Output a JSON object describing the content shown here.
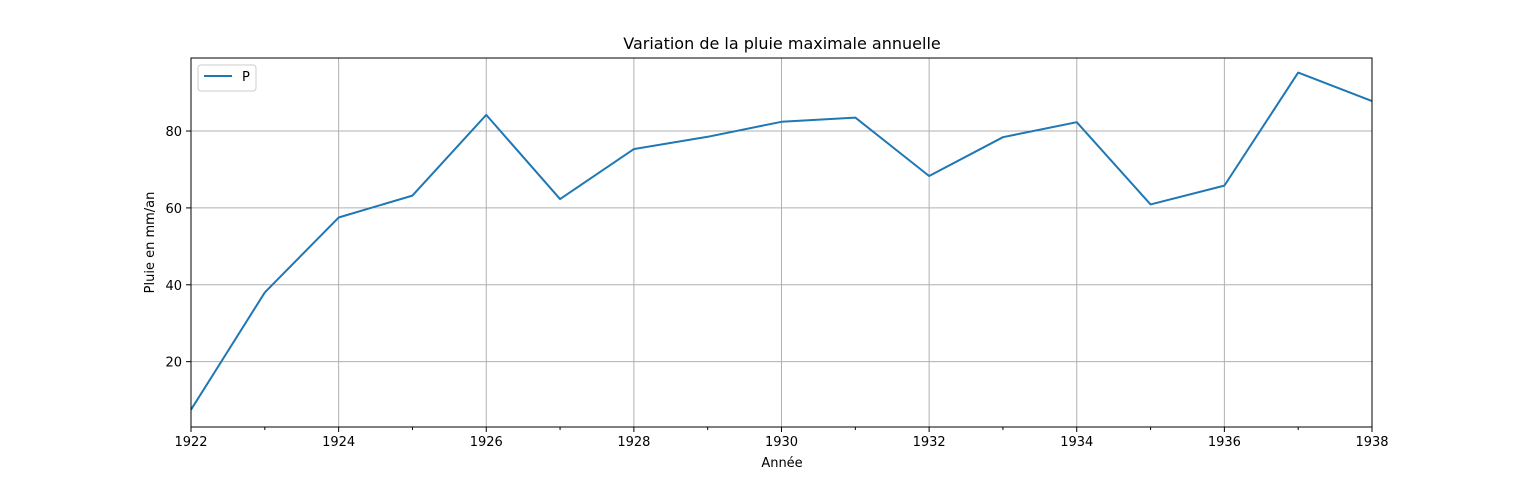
{
  "chart_data": {
    "type": "line",
    "title": "Variation de la pluie maximale annuelle",
    "xlabel": "Année",
    "ylabel": "Pluie en mm/an",
    "x": [
      1922,
      1923,
      1924,
      1925,
      1926,
      1927,
      1928,
      1929,
      1930,
      1931,
      1932,
      1933,
      1934,
      1935,
      1936,
      1937,
      1938
    ],
    "series": [
      {
        "name": "P",
        "color": "#1f77b4",
        "values": [
          7.5,
          38,
          57.5,
          63.2,
          84.2,
          62.3,
          75.3,
          78.5,
          82.4,
          83.5,
          68.3,
          78.4,
          82.3,
          60.9,
          65.8,
          95.2,
          87.8
        ]
      }
    ],
    "xlim": [
      1922,
      1938
    ],
    "ylim": [
      3,
      99
    ],
    "xticks": [
      1922,
      1924,
      1926,
      1928,
      1930,
      1932,
      1934,
      1936,
      1938
    ],
    "xtick_labels": [
      "1922",
      "1924",
      "1926",
      "1928",
      "1930",
      "1932",
      "1934",
      "1936",
      "1938"
    ],
    "xminor_ticks": [
      1923,
      1925,
      1927,
      1929,
      1931,
      1933,
      1935,
      1937
    ],
    "yticks": [
      20,
      40,
      60,
      80
    ],
    "ytick_labels": [
      "20",
      "40",
      "60",
      "80"
    ],
    "grid": true,
    "legend": "upper-left"
  }
}
